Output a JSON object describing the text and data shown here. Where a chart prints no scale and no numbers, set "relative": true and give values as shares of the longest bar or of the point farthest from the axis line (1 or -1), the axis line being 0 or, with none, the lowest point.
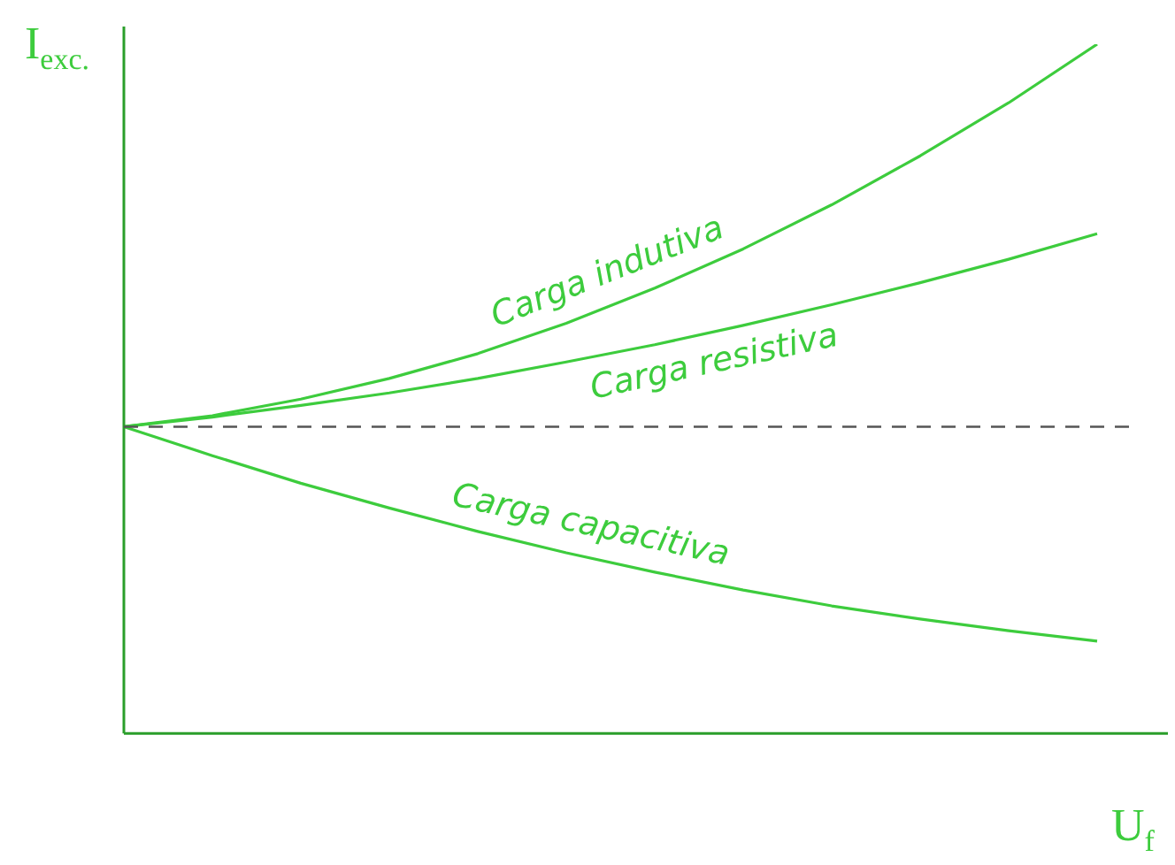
{
  "chart_data": {
    "type": "line",
    "relative": true,
    "xlabel": "U$_{f}$",
    "ylabel": "I$_{exc.}$",
    "categories": [
      null,
      null,
      null,
      null,
      null,
      null,
      null,
      null,
      null,
      null,
      null,
      null
    ],
    "marker": "none",
    "series": [
      {
        "name": "Carga indutiva",
        "color": "#3dcc3d",
        "values": [
          0.445,
          0.461,
          0.485,
          0.515,
          0.551,
          0.595,
          0.646,
          0.703,
          0.767,
          0.838,
          0.915,
          1
        ]
      },
      {
        "name": "Carga resistiva",
        "color": "#3dcc3d",
        "values": [
          0.445,
          0.459,
          0.476,
          0.494,
          0.515,
          0.539,
          0.564,
          0.592,
          0.622,
          0.654,
          0.688,
          0.725
        ]
      },
      {
        "name": "Carga capacitiva",
        "color": "#3dcc3d",
        "values": [
          0.445,
          0.403,
          0.363,
          0.327,
          0.293,
          0.262,
          0.234,
          0.208,
          0.185,
          0.166,
          0.149,
          0.134
        ]
      }
    ],
    "ref_lines": [
      {
        "axis": "y",
        "value": 0.445,
        "color": "#555555",
        "line_style": "dashed"
      }
    ]
  }
}
